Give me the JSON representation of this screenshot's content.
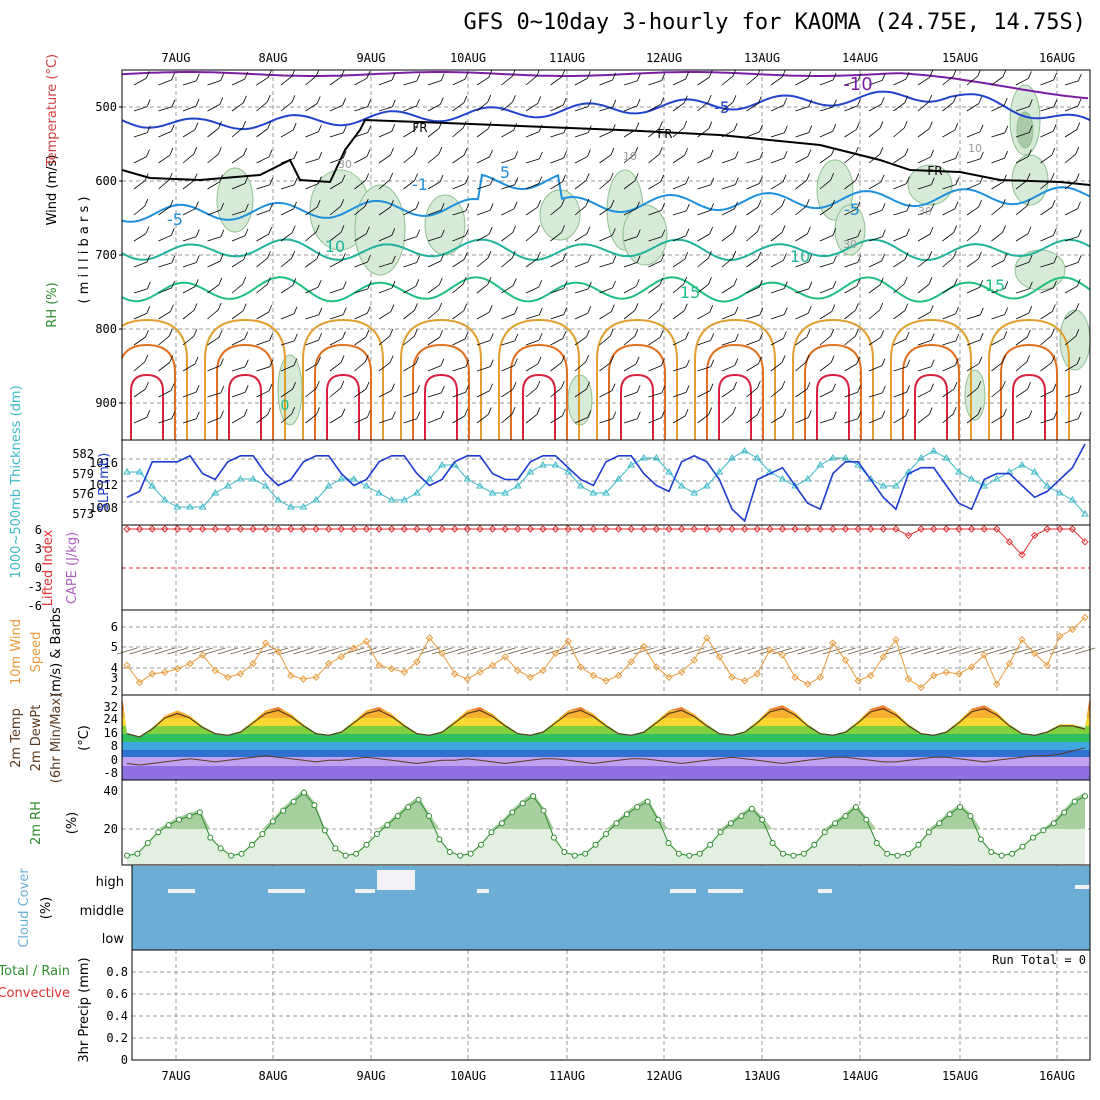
{
  "title": "GFS 0~10day 3-hourly for KAOMA (24.75E, 14.75S)",
  "date_labels": [
    "7AUG",
    "8AUG",
    "9AUG",
    "10AUG",
    "11AUG",
    "12AUG",
    "13AUG",
    "14AUG",
    "15AUG",
    "16AUG"
  ],
  "colors": {
    "bg": "#ffffff",
    "grid": "#999999",
    "rh_fill": "#d7ead7",
    "rh_edge": "#8fbf8f",
    "wind_black": "#000000",
    "t_minus10": "#7a1fa2",
    "t_minus5": "#2244cc",
    "t_0": "#1e90dd",
    "t_10": "#20b29a",
    "t_15": "#1fbf80",
    "t_warm1": "#e0a030",
    "t_warm2": "#e07020",
    "t_warm3": "#d82040",
    "thickness": "#3cb8c8",
    "slp": "#1c3cd0",
    "lifted": "#e03030",
    "wind10": "#e89a3c",
    "barb": "#6b5a40",
    "cloud": "#6aaed6",
    "rh2m_line": "#2e8b2e",
    "rh2m_fill": "#e3efe1",
    "precip_conv": "#e03030"
  },
  "panels": {
    "upper": {
      "label_wind": "Wind (m/s)",
      "label_temp": "Temperature (°C)",
      "label_rh": "RH (%)",
      "label_mb": "( m i l l i b a r s )",
      "y_ticks": [
        "500",
        "600",
        "700",
        "800",
        "900"
      ],
      "contour_labels": [
        "-10",
        "-5",
        "FR",
        "FR",
        "FR",
        "-5",
        "-5",
        "-1",
        "5",
        "10",
        "10",
        "15",
        "15",
        "0",
        "10",
        "30",
        "30",
        "30",
        "10"
      ]
    },
    "thickness_slp": {
      "label_thk": "1000~500mb Thickness (dm)",
      "label_slp": "SLP (mb)",
      "thk_ticks": [
        "582",
        "579",
        "576",
        "573"
      ],
      "slp_ticks": [
        "1016",
        "1012",
        "1008"
      ]
    },
    "cape_li": {
      "label_li": "Lifted Index",
      "label_cape": "CAPE (J/kg)",
      "y_ticks": [
        "6",
        "3",
        "0",
        "-3",
        "-6"
      ]
    },
    "wind10": {
      "label_main": "10m Wind",
      "label_speed": "Speed",
      "label_units": "(m/s) & Barbs",
      "y_ticks": [
        "6",
        "5",
        "4",
        "3",
        "2"
      ]
    },
    "temp2m": {
      "label1": "2m Temp",
      "label2": "2m DewPt",
      "label3": "(6hr Min/Max)",
      "label_units": "(°C)",
      "y_ticks": [
        "32",
        "24",
        "16",
        "8",
        "0",
        "-8"
      ]
    },
    "rh2m": {
      "label": "2m RH",
      "label_units": "(%)",
      "y_ticks": [
        "40",
        "20"
      ]
    },
    "cloud": {
      "label": "Cloud Cover",
      "label_units": "(%)",
      "y_ticks": [
        "high",
        "middle",
        "low"
      ]
    },
    "precip": {
      "label_total": "Total / Rain",
      "label_conv": "Convective",
      "label_main": "3hr Precip (mm)",
      "y_ticks": [
        "0.8",
        "0.6",
        "0.4",
        "0.2",
        "0"
      ],
      "run_total": "Run Total = 0"
    }
  },
  "chart_data": [
    {
      "type": "line",
      "series": [
        {
          "values": [
            1010,
            1011,
            1016,
            1016,
            1016,
            1017,
            1014,
            1013,
            1016,
            1017,
            1017,
            1014,
            1012,
            1013,
            1016,
            1017,
            1017,
            1014,
            1012,
            1013,
            1016,
            1017,
            1017,
            1014,
            1012,
            1013,
            1016,
            1017,
            1017,
            1014,
            1013,
            1013,
            1016,
            1017,
            1017,
            1015,
            1013,
            1012,
            1016,
            1017,
            1017,
            1014,
            1012,
            1011,
            1016,
            1017,
            1016,
            1013,
            1008,
            1006,
            1013,
            1014,
            1015,
            1012,
            1009,
            1008,
            1014,
            1016,
            1016,
            1013,
            1010,
            1008,
            1014,
            1015,
            1015,
            1012,
            1009,
            1008,
            1013,
            1014,
            1014,
            1012,
            1010,
            1011,
            1013,
            1015,
            1019
          ]
        }
      ],
      "ylim": [
        1006,
        1019
      ]
    },
    {
      "type": "line",
      "series": [
        {
          "values": [
            579,
            579,
            577,
            575,
            574,
            574,
            574,
            576,
            577,
            578,
            578,
            577,
            575,
            574,
            574,
            575,
            577,
            578,
            578,
            577,
            576,
            575,
            575,
            576,
            578,
            580,
            580,
            578,
            577,
            576,
            576,
            577,
            579,
            580,
            580,
            579,
            577,
            576,
            576,
            578,
            580,
            581,
            581,
            579,
            577,
            576,
            577,
            579,
            581,
            582,
            581,
            579,
            578,
            577,
            578,
            580,
            581,
            581,
            580,
            578,
            577,
            577,
            579,
            581,
            582,
            581,
            579,
            578,
            577,
            578,
            579,
            580,
            579,
            577,
            576,
            575,
            573
          ]
        }
      ],
      "ylim": [
        572,
        583
      ]
    },
    {
      "type": "line",
      "series": [
        {
          "values": [
            6,
            6,
            6,
            6,
            6,
            6,
            6,
            6,
            6,
            6,
            6,
            6,
            6,
            6,
            6,
            6,
            6,
            6,
            6,
            6,
            6,
            6,
            6,
            6,
            6,
            6,
            6,
            6,
            6,
            6,
            6,
            6,
            6,
            6,
            6,
            6,
            6,
            6,
            6,
            6,
            6,
            6,
            6,
            6,
            6,
            6,
            6,
            6,
            6,
            6,
            6,
            6,
            6,
            6,
            6,
            6,
            6,
            6,
            6,
            6,
            6,
            6,
            5,
            6,
            6,
            6,
            6,
            6,
            6,
            6,
            4,
            2,
            5,
            6,
            6,
            6,
            4
          ]
        }
      ],
      "ylim": [
        -6,
        6
      ]
    },
    {
      "type": "line",
      "series": [
        {
          "values": [
            3.5,
            2.5,
            3.0,
            3.1,
            3.3,
            3.6,
            4.1,
            3.2,
            2.8,
            3.0,
            3.6,
            4.8,
            4.3,
            2.9,
            2.7,
            2.8,
            3.6,
            4.0,
            4.5,
            4.9,
            3.5,
            3.3,
            3.1,
            3.7,
            5.1,
            4.2,
            3.0,
            2.7,
            3.1,
            3.5,
            4.0,
            3.2,
            2.8,
            3.2,
            4.2,
            4.9,
            3.4,
            2.9,
            2.6,
            2.9,
            3.7,
            4.6,
            3.4,
            2.8,
            3.1,
            3.8,
            5.1,
            4.0,
            2.8,
            2.6,
            3.0,
            4.4,
            4.1,
            2.8,
            2.4,
            2.8,
            4.8,
            3.8,
            2.6,
            2.9,
            4.0,
            5.0,
            2.7,
            2.2,
            2.9,
            3.1,
            3.0,
            3.4,
            4.1,
            2.4,
            3.6,
            5.0,
            4.2,
            3.5,
            5.2,
            5.6,
            6.3
          ]
        }
      ],
      "ylim": [
        2,
        6.5
      ]
    },
    {
      "type": "area",
      "series": [
        {
          "values": [
            17,
            15,
            20,
            27,
            30,
            27,
            21,
            17,
            16,
            18,
            24,
            30,
            32,
            28,
            22,
            17,
            16,
            18,
            24,
            30,
            32,
            28,
            22,
            17,
            16,
            18,
            24,
            30,
            32,
            28,
            22,
            17,
            16,
            18,
            24,
            30,
            32,
            28,
            22,
            17,
            16,
            18,
            24,
            30,
            32,
            28,
            22,
            17,
            16,
            18,
            24,
            31,
            33,
            29,
            22,
            17,
            16,
            18,
            24,
            31,
            33,
            29,
            22,
            17,
            16,
            18,
            24,
            31,
            33,
            29,
            22,
            17,
            16,
            18,
            22,
            22,
            20
          ]
        },
        {
          "values": [
            -2,
            -3,
            -2,
            -1,
            0,
            1,
            0,
            -1,
            0,
            1,
            2,
            3,
            2,
            1,
            0,
            -1,
            0,
            0,
            1,
            2,
            1,
            0,
            -1,
            -2,
            -1,
            0,
            0,
            1,
            0,
            -1,
            -2,
            -1,
            0,
            1,
            1,
            0,
            -1,
            -2,
            -1,
            0,
            1,
            1,
            0,
            -1,
            -2,
            -1,
            0,
            1,
            2,
            1,
            0,
            -1,
            -2,
            -1,
            0,
            1,
            2,
            2,
            1,
            0,
            -1,
            -1,
            0,
            1,
            2,
            2,
            1,
            0,
            -1,
            0,
            1,
            2,
            3,
            3,
            4,
            6,
            8
          ]
        }
      ],
      "ylim": [
        -10,
        36
      ]
    },
    {
      "type": "area",
      "series": [
        {
          "values": [
            8,
            9,
            15,
            21,
            25,
            28,
            30,
            32,
            18,
            12,
            8,
            9,
            14,
            20,
            27,
            33,
            38,
            43,
            36,
            22,
            12,
            8,
            9,
            14,
            20,
            25,
            30,
            35,
            39,
            30,
            17,
            10,
            8,
            9,
            14,
            21,
            26,
            32,
            37,
            41,
            33,
            18,
            10,
            8,
            9,
            14,
            20,
            26,
            31,
            35,
            38,
            28,
            15,
            9,
            8,
            9,
            14,
            21,
            26,
            30,
            34,
            28,
            15,
            9,
            8,
            9,
            14,
            21,
            26,
            30,
            35,
            28,
            15,
            9,
            8,
            9,
            14,
            21,
            26,
            31,
            35,
            30,
            17,
            10,
            8,
            9,
            13,
            18,
            22,
            26,
            32,
            38,
            41
          ]
        }
      ],
      "ylim": [
        5,
        45
      ]
    },
    {
      "type": "bar",
      "series": [
        {
          "values": [
            0,
            0,
            0,
            0,
            0,
            0,
            0,
            0,
            0,
            0,
            0,
            0,
            0,
            0,
            0,
            0,
            0,
            0,
            0,
            0,
            0,
            0,
            0,
            0,
            0,
            0,
            0,
            0,
            0,
            0,
            0,
            0,
            0,
            0,
            0,
            0,
            0,
            0,
            0,
            0,
            0,
            0,
            0,
            0,
            0,
            0,
            0,
            0,
            0,
            0,
            0,
            0,
            0,
            0,
            0,
            0,
            0,
            0,
            0,
            0,
            0,
            0,
            0,
            0,
            0,
            0,
            0,
            0,
            0,
            0,
            0,
            0,
            0,
            0,
            0,
            0,
            0
          ]
        }
      ],
      "ylim": [
        0,
        1
      ]
    }
  ]
}
